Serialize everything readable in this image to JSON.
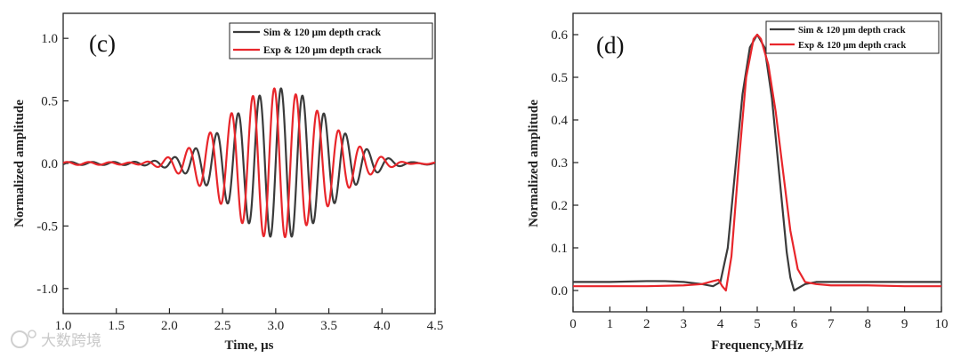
{
  "chart_data": [
    {
      "type": "line",
      "panel_label": "(c)",
      "xlabel": "Time, μs",
      "ylabel": "Normalized amplitude",
      "xlim": [
        1.0,
        4.5
      ],
      "ylim": [
        -1.2,
        1.2
      ],
      "xticks": [
        "1.0",
        "1.5",
        "2.0",
        "2.5",
        "3.0",
        "3.5",
        "4.0",
        "4.5"
      ],
      "yticks": [
        "-1.0",
        "-0.5",
        "0.0",
        "0.5",
        "1.0"
      ],
      "legend_position": "top-right",
      "series": [
        {
          "name": "Sim & 120 μm depth crack",
          "color": "#3b3b3b",
          "model": "tone_burst",
          "center": 3.05,
          "frequency_mhz": 4.95,
          "peak": 0.6,
          "envelope_width": 0.45,
          "phase": 0.0
        },
        {
          "name": "Exp & 120 μm depth crack",
          "color": "#e8262b",
          "model": "tone_burst",
          "center": 3.0,
          "frequency_mhz": 4.95,
          "peak": 0.6,
          "envelope_width": 0.47,
          "phase": 0.4
        }
      ]
    },
    {
      "type": "line",
      "panel_label": "(d)",
      "xlabel": "Frequency,MHz",
      "ylabel": "Normalized amplitude",
      "xlim": [
        0,
        10
      ],
      "ylim": [
        -0.05,
        0.65
      ],
      "xticks": [
        "0",
        "1",
        "2",
        "3",
        "4",
        "5",
        "6",
        "7",
        "8",
        "9",
        "10"
      ],
      "yticks": [
        "0.0",
        "0.1",
        "0.2",
        "0.3",
        "0.4",
        "0.5",
        "0.6"
      ],
      "legend_position": "top-right",
      "series": [
        {
          "name": "Sim & 120 μm depth crack",
          "color": "#3b3b3b",
          "x": [
            0,
            1,
            2,
            2.5,
            3,
            3.5,
            3.8,
            4.0,
            4.2,
            4.4,
            4.6,
            4.8,
            5.0,
            5.2,
            5.4,
            5.6,
            5.8,
            5.9,
            6.0,
            6.1,
            6.3,
            6.6,
            7,
            8,
            9,
            10
          ],
          "y": [
            0.02,
            0.02,
            0.022,
            0.022,
            0.02,
            0.015,
            0.01,
            0.02,
            0.1,
            0.28,
            0.46,
            0.57,
            0.6,
            0.57,
            0.45,
            0.27,
            0.09,
            0.03,
            0.0,
            0.005,
            0.015,
            0.02,
            0.02,
            0.02,
            0.02,
            0.02
          ]
        },
        {
          "name": "Exp & 120 μm depth crack",
          "color": "#e8262b",
          "x": [
            0,
            1,
            2,
            3,
            3.5,
            3.8,
            3.95,
            4.05,
            4.15,
            4.3,
            4.5,
            4.7,
            4.9,
            5.0,
            5.1,
            5.3,
            5.5,
            5.7,
            5.9,
            6.1,
            6.3,
            6.6,
            7,
            8,
            9,
            10
          ],
          "y": [
            0.01,
            0.01,
            0.01,
            0.012,
            0.015,
            0.022,
            0.025,
            0.01,
            0.0,
            0.08,
            0.3,
            0.5,
            0.59,
            0.6,
            0.59,
            0.53,
            0.42,
            0.28,
            0.14,
            0.05,
            0.02,
            0.015,
            0.012,
            0.012,
            0.01,
            0.01
          ]
        }
      ]
    }
  ],
  "watermark": "大数跨境"
}
